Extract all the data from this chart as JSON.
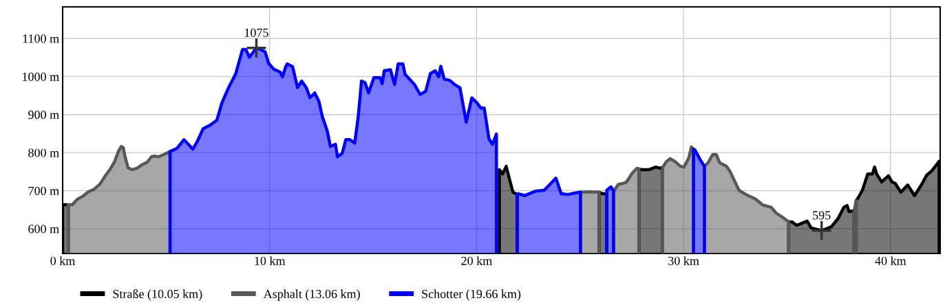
{
  "chart_data": {
    "type": "area",
    "xlim": [
      0,
      42.4
    ],
    "ylim": [
      535,
      1183
    ],
    "xticks": [
      {
        "value": 0,
        "label": "0 km"
      },
      {
        "value": 10,
        "label": "10 km"
      },
      {
        "value": 20,
        "label": "20 km"
      },
      {
        "value": 30,
        "label": "30 km"
      },
      {
        "value": 40,
        "label": "40 km"
      }
    ],
    "yticks": [
      {
        "value": 600,
        "label": "600 m"
      },
      {
        "value": 700,
        "label": "700 m"
      },
      {
        "value": 800,
        "label": "800 m"
      },
      {
        "value": 900,
        "label": "900 m"
      },
      {
        "value": 1000,
        "label": "1000 m"
      },
      {
        "value": 1100,
        "label": "1100 m"
      }
    ],
    "grid": true,
    "legend": "bottom",
    "annotations": [
      {
        "text": "1075",
        "x": 9.36,
        "y": 1075
      },
      {
        "text": "595",
        "x": 36.67,
        "y": 595
      }
    ],
    "series": [
      {
        "name": "Straße (10.05 km)",
        "color": "#000000",
        "x": [
          0,
          0.27,
          null,
          21.1,
          21.26,
          21.43,
          21.6,
          21.76,
          21.96,
          null,
          25.92,
          26.09,
          26.29,
          null,
          27.85,
          27.99,
          28.32,
          28.65,
          28.85,
          28.99,
          null,
          35.08,
          35.24,
          35.47,
          35.97,
          36.17,
          36.67,
          37.14,
          37.47,
          37.74,
          37.9,
          38.0,
          38.24,
          null,
          38.34,
          38.4,
          38.64,
          38.9,
          39.13,
          39.23,
          39.33,
          39.57,
          39.9,
          40.07,
          40.23,
          40.5,
          40.83,
          41.16,
          41.48,
          41.75,
          42.01,
          42.35
        ],
        "values": [
          663,
          663,
          null,
          755,
          744,
          764,
          728,
          696,
          690,
          null,
          696,
          692,
          692,
          null,
          757,
          755,
          755,
          762,
          759,
          761,
          null,
          618,
          618,
          609,
          620,
          602,
          595,
          605,
          627,
          656,
          661,
          645,
          647,
          null,
          674,
          678,
          701,
          744,
          744,
          762,
          744,
          723,
          739,
          723,
          719,
          696,
          715,
          687,
          714,
          741,
          753,
          777
        ]
      },
      {
        "name": "Asphalt (13.06 km)",
        "color": "#585858",
        "x": [
          0.27,
          0.47,
          0.7,
          0.97,
          1.23,
          1.5,
          1.8,
          2.06,
          2.3,
          2.5,
          2.7,
          2.83,
          2.93,
          3.03,
          3.16,
          3.36,
          3.59,
          3.83,
          4.09,
          4.29,
          4.43,
          4.63,
          4.89,
          5.19,
          null,
          25.02,
          25.42,
          25.92,
          null,
          26.62,
          26.86,
          27.09,
          27.25,
          27.52,
          27.75,
          27.85,
          null,
          28.99,
          29.18,
          29.35,
          29.58,
          29.85,
          30.02,
          30.25,
          30.38,
          30.48,
          null,
          31.01,
          31.18,
          31.41,
          31.58,
          31.75,
          32.08,
          32.25,
          32.68,
          33.01,
          33.48,
          33.81,
          34.24,
          34.48,
          34.81,
          35.08,
          null,
          38.24,
          38.34
        ],
        "values": [
          663,
          663,
          677,
          685,
          697,
          703,
          717,
          739,
          757,
          775,
          804,
          816,
          813,
          786,
          760,
          755,
          759,
          768,
          775,
          789,
          791,
          789,
          795,
          803,
          null,
          696,
          697,
          696,
          null,
          699,
          717,
          719,
          723,
          746,
          759,
          757,
          null,
          761,
          777,
          784,
          777,
          764,
          762,
          786,
          815,
          809,
          null,
          764,
          773,
          795,
          795,
          773,
          764,
          750,
          701,
          690,
          678,
          663,
          656,
          641,
          629,
          618,
          null,
          647,
          674
        ]
      },
      {
        "name": "Schotter (19.66 km)",
        "color": "#0000ff",
        "x": [
          5.19,
          5.52,
          5.86,
          6.02,
          6.29,
          6.52,
          6.79,
          7.12,
          7.45,
          7.69,
          8.02,
          8.36,
          8.69,
          8.85,
          9.02,
          9.18,
          9.36,
          9.55,
          9.78,
          9.95,
          10.18,
          10.52,
          10.62,
          10.78,
          10.85,
          11.11,
          11.35,
          11.55,
          11.78,
          11.95,
          12.18,
          12.38,
          12.55,
          12.78,
          12.94,
          13.18,
          13.28,
          13.51,
          13.68,
          13.88,
          14.11,
          14.28,
          14.44,
          14.61,
          14.78,
          15.04,
          15.34,
          15.44,
          15.54,
          15.84,
          16.04,
          16.21,
          16.44,
          16.54,
          17.0,
          17.27,
          17.54,
          17.77,
          18.0,
          18.17,
          18.27,
          18.44,
          18.7,
          18.94,
          19.2,
          19.5,
          19.77,
          20.03,
          20.2,
          20.37,
          20.6,
          20.77,
          20.96,
          null,
          21.96,
          22.0,
          22.33,
          22.86,
          23.26,
          23.59,
          23.83,
          24.09,
          24.43,
          24.76,
          25.02,
          null,
          26.29,
          26.49,
          26.62,
          null,
          30.48,
          30.55,
          30.82,
          31.01
        ],
        "values": [
          803,
          811,
          834,
          825,
          809,
          831,
          863,
          872,
          885,
          930,
          971,
          1007,
          1071,
          1071,
          1051,
          1062,
          1075,
          1071,
          1065,
          1035,
          1020,
          1011,
          999,
          1026,
          1033,
          1026,
          971,
          988,
          970,
          944,
          957,
          935,
          894,
          858,
          816,
          822,
          789,
          798,
          834,
          834,
          825,
          894,
          988,
          984,
          957,
          997,
          997,
          981,
          1015,
          1018,
          979,
          1033,
          1033,
          1006,
          979,
          953,
          961,
          1008,
          1015,
          999,
          1027,
          993,
          990,
          979,
          970,
          880,
          944,
          930,
          917,
          917,
          836,
          822,
          849,
          null,
          690,
          692,
          687,
          699,
          701,
          719,
          733,
          692,
          690,
          694,
          696,
          null,
          701,
          710,
          699,
          null,
          809,
          807,
          780,
          764
        ]
      }
    ]
  }
}
